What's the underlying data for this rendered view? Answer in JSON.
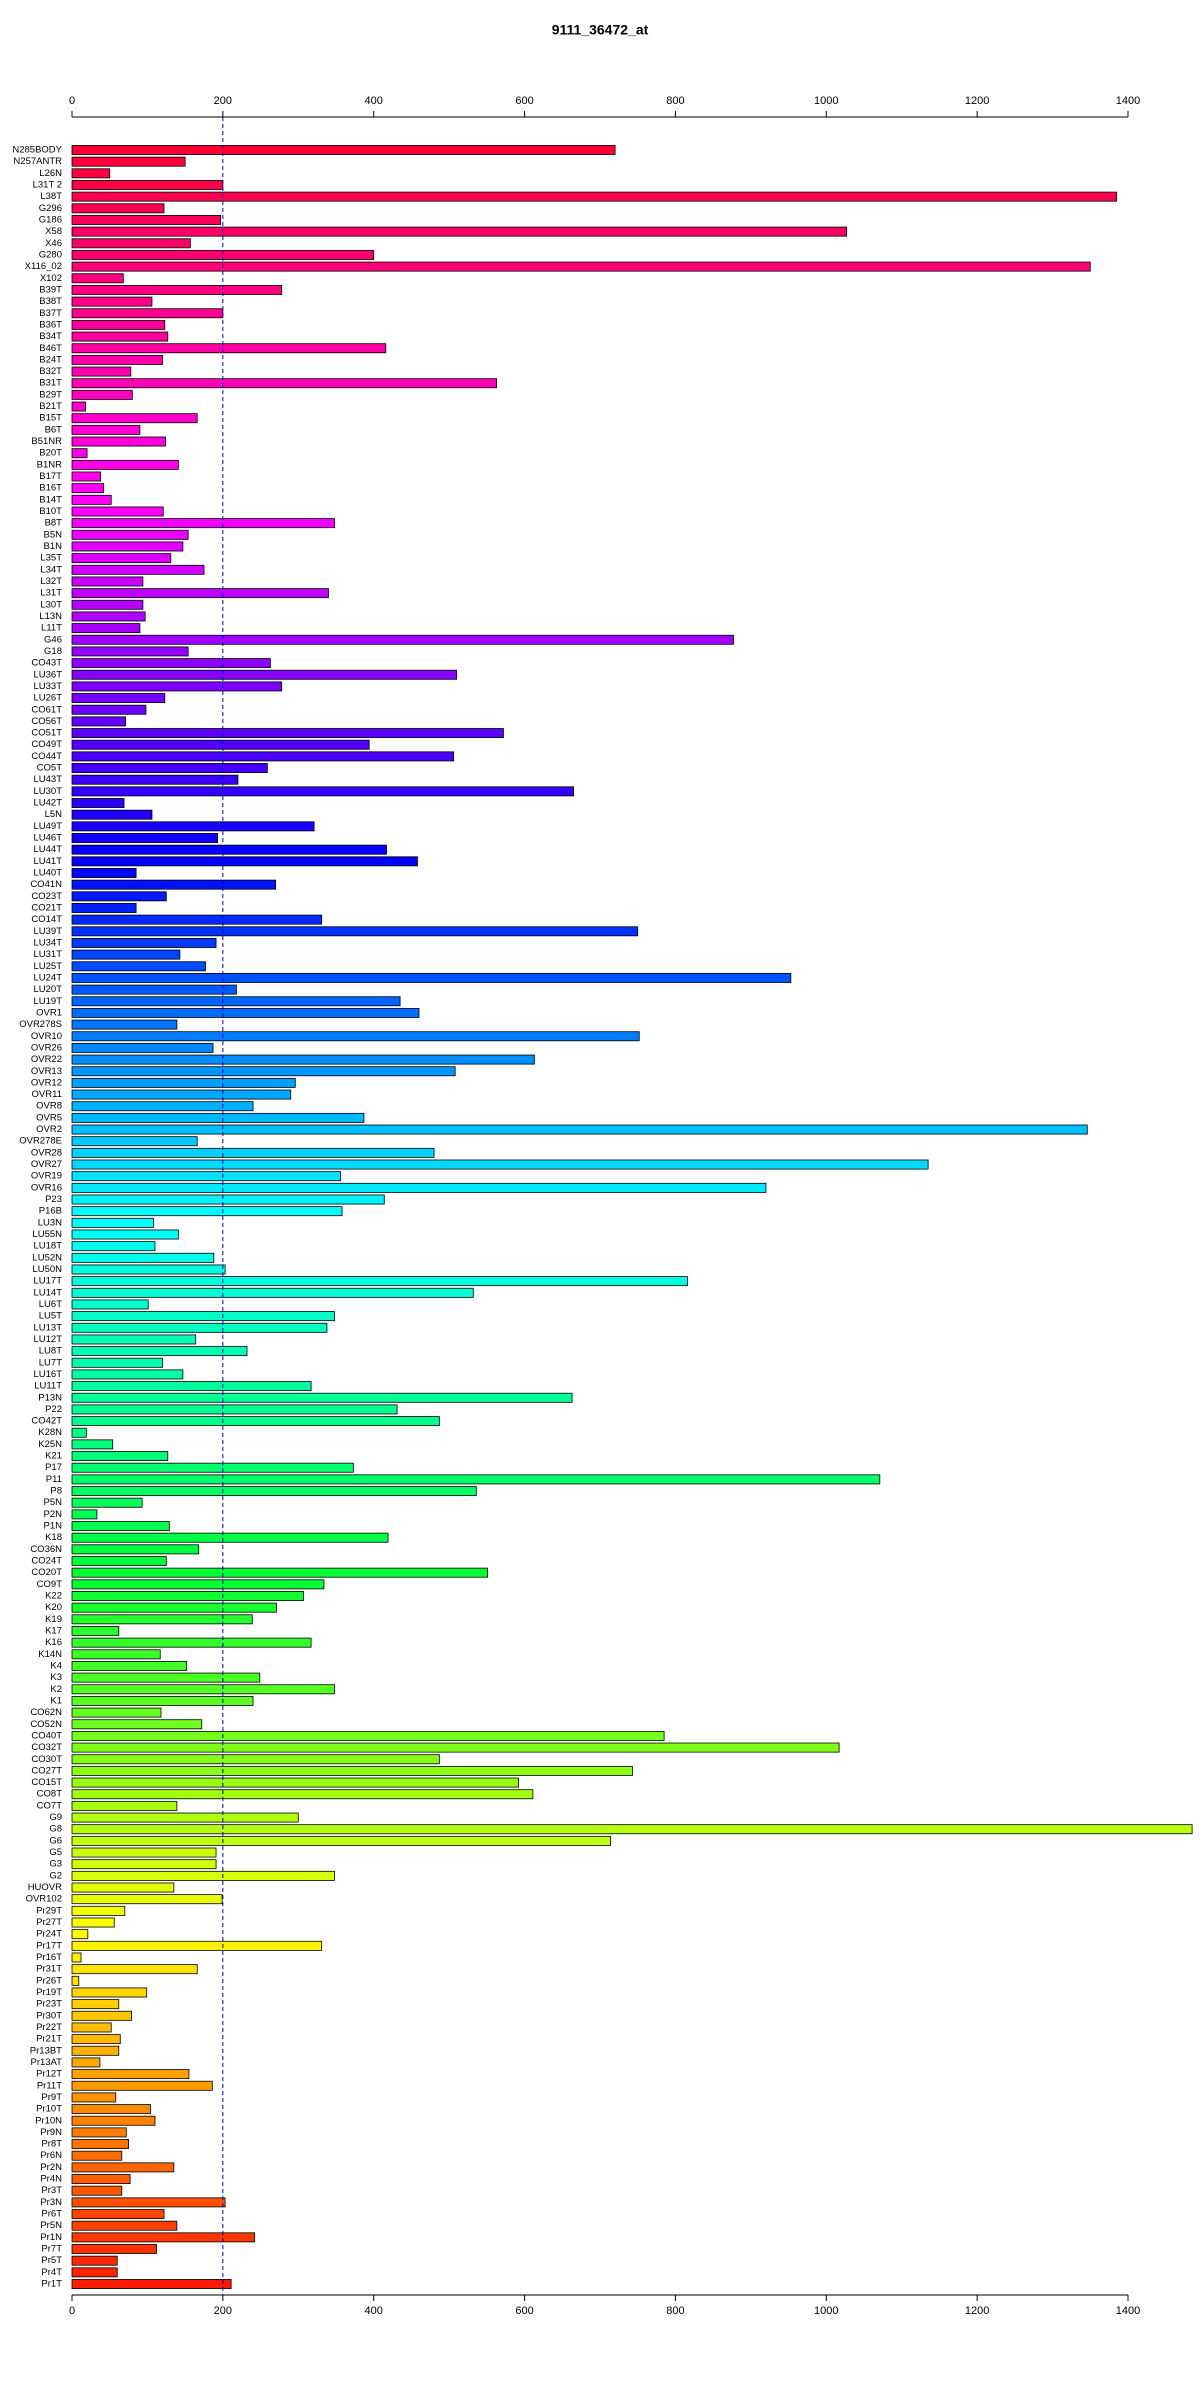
{
  "chart_data": {
    "type": "barh",
    "title": "9111_36472_at",
    "categories": [
      "N285BODY",
      "N257ANTR",
      "L26N",
      "L31T 2",
      "L38T",
      "G296",
      "G186",
      "X58",
      "X46",
      "G280",
      "X116_02",
      "X102",
      "B39T",
      "B38T",
      "B37T",
      "B36T",
      "B34T",
      "B46T",
      "B24T",
      "B32T",
      "B31T",
      "B29T",
      "B21T",
      "B15T",
      "B6T",
      "B51NR",
      "B20T",
      "B1NR",
      "B17T",
      "B16T",
      "B14T",
      "B10T",
      "B8T",
      "B5N",
      "B1N",
      "L35T",
      "L34T",
      "L32T",
      "L31T",
      "L30T",
      "L13N",
      "L11T",
      "G46",
      "G18",
      "CO43T",
      "LU36T",
      "LU33T",
      "LU26T",
      "CO61T",
      "CO56T",
      "CO51T",
      "CO49T",
      "CO44T",
      "CO5T",
      "LU43T",
      "LU30T",
      "LU42T",
      "L5N",
      "LU49T",
      "LU46T",
      "LU44T",
      "LU41T",
      "LU40T",
      "CO41N",
      "CO23T",
      "CO21T",
      "CO14T",
      "LU39T",
      "LU34T",
      "LU31T",
      "LU25T",
      "LU24T",
      "LU20T",
      "LU19T",
      "OVR1",
      "OVR278S",
      "OVR10",
      "OVR26",
      "OVR22",
      "OVR13",
      "OVR12",
      "OVR11",
      "OVR8",
      "OVR5",
      "OVR2",
      "OVR278E",
      "OVR28",
      "OVR27",
      "OVR19",
      "OVR16",
      "P23",
      "P16B",
      "LU3N",
      "LU55N",
      "LU18T",
      "LU52N",
      "LU50N",
      "LU17T",
      "LU14T",
      "LU6T",
      "LU5T",
      "LU13T",
      "LU12T",
      "LU8T",
      "LU7T",
      "LU16T",
      "LU11T",
      "P13N",
      "P22",
      "CO42T",
      "K28N",
      "K25N",
      "K21",
      "P17",
      "P11",
      "P8",
      "P5N",
      "P2N",
      "P1N",
      "K18",
      "CO36N",
      "CO24T",
      "CO20T",
      "CO9T",
      "K22",
      "K20",
      "K19",
      "K17",
      "K16",
      "K14N",
      "K4",
      "K3",
      "K2",
      "K1",
      "CO62N",
      "CO52N",
      "CO40T",
      "CO32T",
      "CO30T",
      "CO27T",
      "CO15T",
      "CO8T",
      "CO7T",
      "G9",
      "G8",
      "G6",
      "G5",
      "G3",
      "G2",
      "HUOVR",
      "OVR102",
      "Pr29T",
      "Pr27T",
      "Pr24T",
      "Pr17T",
      "Pr16T",
      "Pr31T",
      "Pr26T",
      "Pr19T",
      "Pr23T",
      "Pr30T",
      "Pr22T",
      "Pr21T",
      "Pr13BT",
      "Pr13AT",
      "Pr12T",
      "Pr11T",
      "Pr9T",
      "Pr10T",
      "Pr10N",
      "Pr9N",
      "Pr8T",
      "Pr6N",
      "Pr2N",
      "Pr4N",
      "Pr3T",
      "Pr3N",
      "Pr6T",
      "Pr5N",
      "Pr1N",
      "Pr7T",
      "Pr5T",
      "Pr4T",
      "Pr1T"
    ],
    "values": [
      720,
      150,
      50,
      200,
      1385,
      122,
      197,
      1027,
      157,
      400,
      1350,
      68,
      278,
      106,
      200,
      123,
      127,
      416,
      120,
      78,
      563,
      80,
      18,
      166,
      90,
      124,
      20,
      141,
      38,
      42,
      52,
      121,
      348,
      154,
      147,
      131,
      175,
      94,
      340,
      94,
      97,
      90,
      877,
      154,
      263,
      510,
      278,
      123,
      98,
      71,
      572,
      394,
      506,
      259,
      220,
      665,
      69,
      106,
      321,
      193,
      417,
      458,
      85,
      270,
      125,
      85,
      331,
      750,
      191,
      143,
      177,
      953,
      218,
      435,
      460,
      139,
      752,
      187,
      613,
      508,
      296,
      290,
      240,
      387,
      1346,
      166,
      480,
      1135,
      356,
      920,
      414,
      358,
      108,
      141,
      110,
      188,
      203,
      816,
      532,
      101,
      348,
      338,
      164,
      232,
      120,
      147,
      317,
      663,
      431,
      487,
      19,
      54,
      127,
      373,
      1071,
      536,
      93,
      33,
      129,
      419,
      168,
      125,
      551,
      334,
      307,
      271,
      239,
      62,
      317,
      117,
      152,
      249,
      348,
      240,
      118,
      172,
      785,
      1017,
      487,
      743,
      592,
      611,
      139,
      300,
      1485,
      714,
      191,
      191,
      348,
      135,
      199,
      70,
      56,
      21,
      331,
      12,
      166,
      9,
      99,
      62,
      79,
      52,
      64,
      62,
      37,
      155,
      186,
      58,
      104,
      110,
      72,
      75,
      66,
      135,
      77,
      66,
      203,
      122,
      139,
      242,
      112,
      60,
      60,
      211
    ],
    "color_gradient": [
      "#ff0033",
      "#ff00ff",
      "#0000ff",
      "#00ffff",
      "#00ff33",
      "#ffff00",
      "#ff1a00"
    ],
    "xlim": [
      0,
      1400
    ],
    "xticks": [
      0,
      200,
      400,
      600,
      800,
      1000,
      1200,
      1400
    ],
    "reference_line": 200,
    "reference_color": "#0000cc"
  }
}
